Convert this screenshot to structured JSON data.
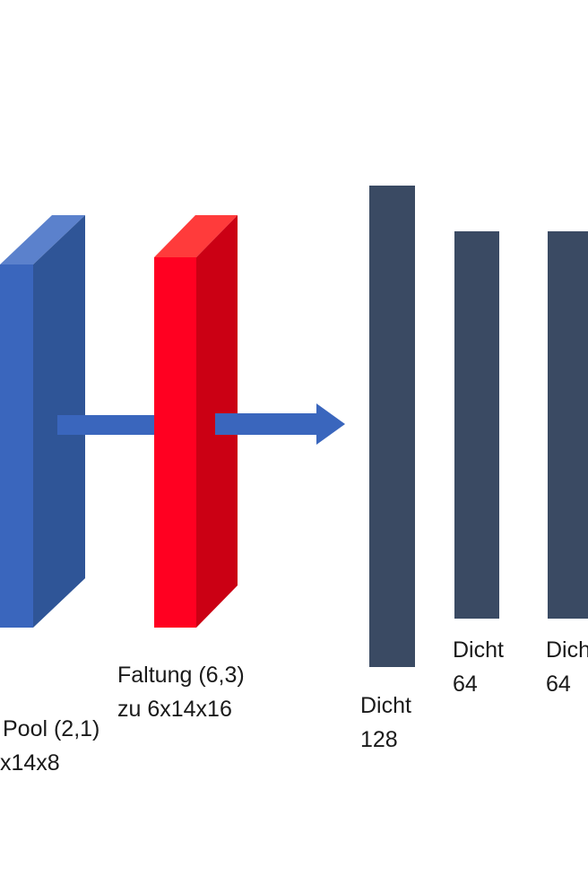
{
  "colors": {
    "pool_front": "#3a66bd",
    "pool_side": "#2f5597",
    "pool_top": "#5b81cc",
    "conv_front": "#ff0021",
    "conv_side": "#cb0014",
    "conv_top": "#ff3b3b",
    "dense": "#3a4a63",
    "arrow": "#3a66bd"
  },
  "layers": {
    "pool": {
      "line1": "Pool (2,1)",
      "line2": "x14x8"
    },
    "conv": {
      "line1": "Faltung (6,3)",
      "line2": "zu 6x14x16"
    },
    "dense1": {
      "line1": "Dicht",
      "line2": "128"
    },
    "dense2": {
      "line1": "Dicht",
      "line2": "64"
    },
    "dense3": {
      "line1": "Dich",
      "line2": "64"
    }
  }
}
